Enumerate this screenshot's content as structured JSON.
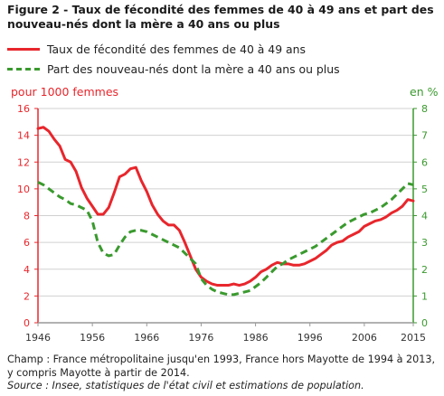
{
  "title": "Figure 2 - Taux de fécondité des femmes de 40 à 49 ans et part des nouveau-nés dont la mère a 40 ans ou plus",
  "legend": {
    "fertility": "Taux de fécondité des femmes de 40 à 49 ans",
    "births_share": "Part des nouveau-nés dont la mère a 40 ans ou plus"
  },
  "colors": {
    "fertility": "#e8262c",
    "births_share": "#3a9a2e",
    "axis": "#999999",
    "grid": "#d0d0d0"
  },
  "footer": {
    "champ": "Champ : France métropolitaine jusqu'en 1993, France hors Mayotte de 1994 à 2013, y compris Mayotte à partir de 2014.",
    "source": "Source : Insee, statistiques de l'état civil et estimations de population."
  },
  "chart_data": {
    "type": "line",
    "x": [
      1946,
      1947,
      1948,
      1949,
      1950,
      1951,
      1952,
      1953,
      1954,
      1955,
      1956,
      1957,
      1958,
      1959,
      1960,
      1961,
      1962,
      1963,
      1964,
      1965,
      1966,
      1967,
      1968,
      1969,
      1970,
      1971,
      1972,
      1973,
      1974,
      1975,
      1976,
      1977,
      1978,
      1979,
      1980,
      1981,
      1982,
      1983,
      1984,
      1985,
      1986,
      1987,
      1988,
      1989,
      1990,
      1991,
      1992,
      1993,
      1994,
      1995,
      1996,
      1997,
      1998,
      1999,
      2000,
      2001,
      2002,
      2003,
      2004,
      2005,
      2006,
      2007,
      2008,
      2009,
      2010,
      2011,
      2012,
      2013,
      2014,
      2015
    ],
    "xlim": [
      1946,
      2015
    ],
    "x_ticks": [
      1946,
      1956,
      1966,
      1976,
      1986,
      1996,
      2006,
      2015
    ],
    "y_left": {
      "label": "pour 1000 femmes",
      "ylim": [
        0,
        16
      ],
      "ticks": [
        0,
        2,
        4,
        6,
        8,
        10,
        12,
        14,
        16
      ]
    },
    "y_right": {
      "label": "en %",
      "ylim": [
        0,
        8
      ],
      "ticks": [
        0,
        1,
        2,
        3,
        4,
        5,
        6,
        7,
        8
      ]
    },
    "grid": "horizontal",
    "legend_position": "top",
    "series": [
      {
        "name": "Taux de fécondité des femmes de 40 à 49 ans",
        "axis": "left",
        "style": "solid",
        "values": [
          14.5,
          14.6,
          14.3,
          13.7,
          13.2,
          12.2,
          12.0,
          11.3,
          10.1,
          9.3,
          8.7,
          8.1,
          8.1,
          8.6,
          9.7,
          10.9,
          11.1,
          11.5,
          11.6,
          10.6,
          9.8,
          8.8,
          8.1,
          7.6,
          7.3,
          7.3,
          6.9,
          6.0,
          5.0,
          4.0,
          3.4,
          3.1,
          2.9,
          2.8,
          2.8,
          2.8,
          2.9,
          2.8,
          2.9,
          3.1,
          3.4,
          3.8,
          4.0,
          4.3,
          4.5,
          4.4,
          4.4,
          4.3,
          4.3,
          4.4,
          4.6,
          4.8,
          5.1,
          5.4,
          5.8,
          6.0,
          6.1,
          6.4,
          6.6,
          6.8,
          7.2,
          7.4,
          7.6,
          7.7,
          7.9,
          8.2,
          8.4,
          8.7,
          9.2,
          9.1
        ]
      },
      {
        "name": "Part des nouveau-nés dont la mère a 40 ans ou plus",
        "axis": "right",
        "style": "dashed",
        "values": [
          5.25,
          5.15,
          5.0,
          4.85,
          4.7,
          4.6,
          4.45,
          4.4,
          4.3,
          4.2,
          3.8,
          3.0,
          2.6,
          2.5,
          2.55,
          2.9,
          3.2,
          3.4,
          3.45,
          3.45,
          3.4,
          3.3,
          3.2,
          3.1,
          3.0,
          2.9,
          2.8,
          2.6,
          2.4,
          2.2,
          1.65,
          1.4,
          1.25,
          1.15,
          1.1,
          1.05,
          1.05,
          1.1,
          1.15,
          1.2,
          1.35,
          1.5,
          1.7,
          1.9,
          2.1,
          2.2,
          2.35,
          2.45,
          2.55,
          2.65,
          2.75,
          2.85,
          3.0,
          3.15,
          3.3,
          3.45,
          3.6,
          3.75,
          3.85,
          3.95,
          4.05,
          4.1,
          4.2,
          4.3,
          4.45,
          4.6,
          4.8,
          5.0,
          5.2,
          5.15
        ]
      }
    ]
  }
}
